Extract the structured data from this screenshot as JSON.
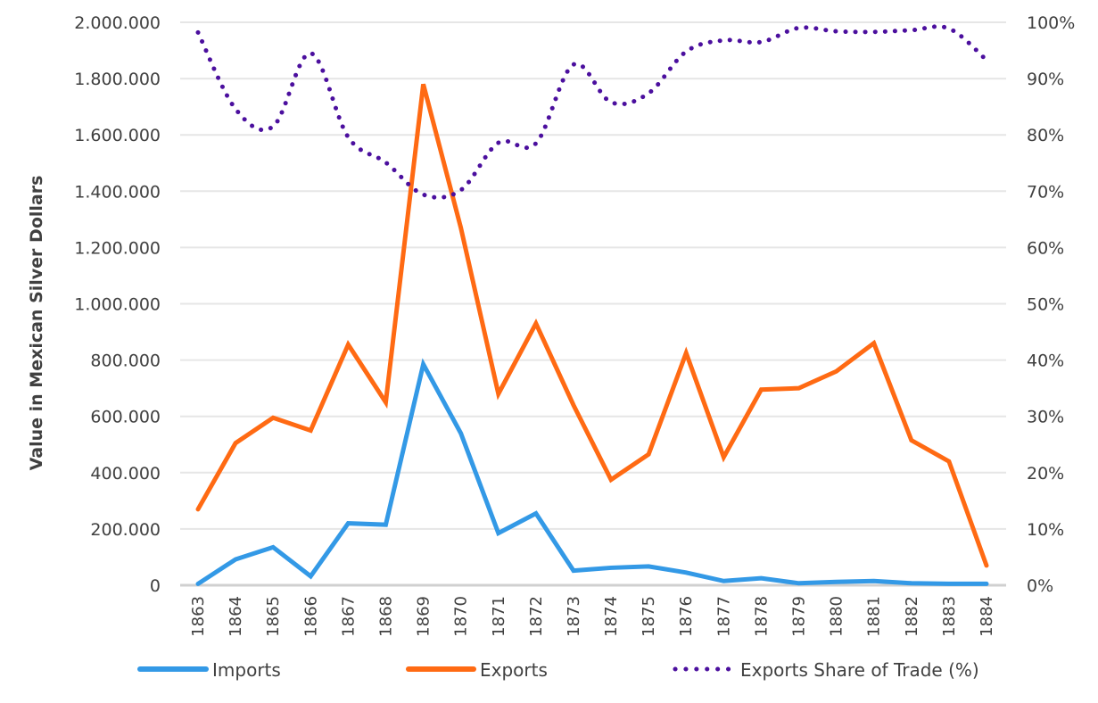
{
  "chart_data": {
    "type": "line",
    "title": "",
    "xlabel": "",
    "ylabel": "Value in Mexican Silver Dollars",
    "y2label": "",
    "categories": [
      "1863",
      "1864",
      "1865",
      "1866",
      "1867",
      "1868",
      "1869",
      "1870",
      "1871",
      "1872",
      "1873",
      "1874",
      "1875",
      "1876",
      "1877",
      "1878",
      "1879",
      "1880",
      "1881",
      "1882",
      "1883",
      "1884"
    ],
    "ylim": [
      0,
      2000000
    ],
    "y2lim": [
      0,
      1
    ],
    "y_ticks": [
      "0",
      "200.000",
      "400.000",
      "600.000",
      "800.000",
      "1.000.000",
      "1.200.000",
      "1.400.000",
      "1.600.000",
      "1.800.000",
      "2.000.000"
    ],
    "y2_ticks": [
      "0%",
      "10%",
      "20%",
      "30%",
      "40%",
      "50%",
      "60%",
      "70%",
      "80%",
      "90%",
      "100%"
    ],
    "grid": true,
    "legend_position": "bottom",
    "series": [
      {
        "name": "Imports",
        "axis": "left",
        "color": "#3399e6",
        "style": "solid",
        "values": [
          5000,
          92000,
          135000,
          32000,
          220000,
          215000,
          785000,
          540000,
          185000,
          255000,
          52000,
          62000,
          67000,
          45000,
          15000,
          25000,
          7000,
          12000,
          15000,
          7000,
          5000,
          5000
        ]
      },
      {
        "name": "Exports",
        "axis": "left",
        "color": "#ff6a13",
        "style": "solid",
        "values": [
          270000,
          505000,
          595000,
          550000,
          855000,
          650000,
          1780000,
          1270000,
          680000,
          930000,
          640000,
          375000,
          465000,
          825000,
          455000,
          695000,
          700000,
          760000,
          860000,
          515000,
          440000,
          70000
        ]
      },
      {
        "name": "Exports Share of Trade (%)",
        "axis": "right",
        "color": "#4b0f9e",
        "style": "dotted",
        "values": [
          0.982,
          0.846,
          0.815,
          0.945,
          0.796,
          0.751,
          0.694,
          0.702,
          0.786,
          0.785,
          0.925,
          0.858,
          0.874,
          0.948,
          0.968,
          0.965,
          0.99,
          0.984,
          0.983,
          0.986,
          0.989,
          0.933
        ]
      }
    ]
  }
}
